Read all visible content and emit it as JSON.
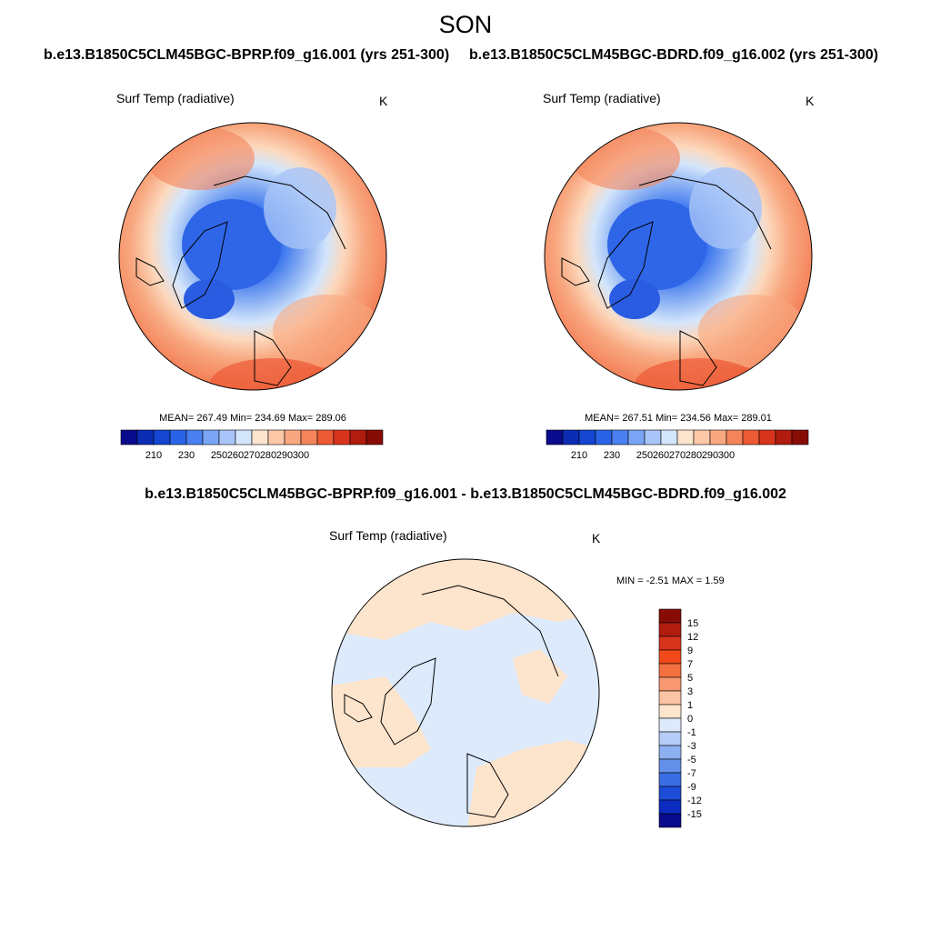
{
  "page": {
    "season": "SON",
    "case1_title": "b.e13.B1850C5CLM45BGC-BPRP.f09_g16.001 (yrs 251-300)",
    "case2_title": "b.e13.B1850C5CLM45BGC-BDRD.f09_g16.002 (yrs 251-300)",
    "diff_title": "b.e13.B1850C5CLM45BGC-BPRP.f09_g16.001 - b.e13.B1850C5CLM45BGC-BDRD.f09_g16.002"
  },
  "panels": [
    {
      "id": "case1",
      "variable": "Surf Temp (radiative)",
      "units": "K",
      "stats": "MEAN= 267.49  Min= 234.69  Max= 289.06",
      "colorbar": {
        "colors": [
          "#0a0a8c",
          "#0c2cb4",
          "#1446d2",
          "#2a64e6",
          "#4a80f0",
          "#7aa4f4",
          "#a8c4f8",
          "#d4e6fb",
          "#fde4cc",
          "#fcc8a8",
          "#f8a880",
          "#f4845c",
          "#ec5a36",
          "#d8341c",
          "#b01c0e",
          "#880c06"
        ],
        "labels": [
          "210",
          "230",
          "250",
          "260",
          "270",
          "280",
          "290",
          "300"
        ]
      }
    },
    {
      "id": "case2",
      "variable": "Surf Temp (radiative)",
      "units": "K",
      "stats": "MEAN= 267.51  Min= 234.56  Max= 289.01",
      "colorbar": {
        "colors": [
          "#0a0a8c",
          "#0c2cb4",
          "#1446d2",
          "#2a64e6",
          "#4a80f0",
          "#7aa4f4",
          "#a8c4f8",
          "#d4e6fb",
          "#fde4cc",
          "#fcc8a8",
          "#f8a880",
          "#f4845c",
          "#ec5a36",
          "#d8341c",
          "#b01c0e",
          "#880c06"
        ],
        "labels": [
          "210",
          "230",
          "250",
          "260",
          "270",
          "280",
          "290",
          "300"
        ]
      }
    },
    {
      "id": "diff",
      "variable": "Surf Temp (radiative)",
      "units": "K",
      "stats": "MIN =  -2.51 MAX =   1.59",
      "colorbar": {
        "colors": [
          "#880c06",
          "#b01c0e",
          "#d8341c",
          "#f04a1a",
          "#f47040",
          "#f89870",
          "#fcc4a4",
          "#fde4cc",
          "#dceafc",
          "#b4ccf6",
          "#8cb0f0",
          "#6490ea",
          "#3a6ee4",
          "#1c4cd8",
          "#0c2cc0",
          "#0a0a8c"
        ],
        "labels": [
          "15",
          "12",
          "9",
          "7",
          "5",
          "3",
          "1",
          "0",
          "-1",
          "-3",
          "-5",
          "-7",
          "-9",
          "-12",
          "-15"
        ]
      }
    }
  ]
}
